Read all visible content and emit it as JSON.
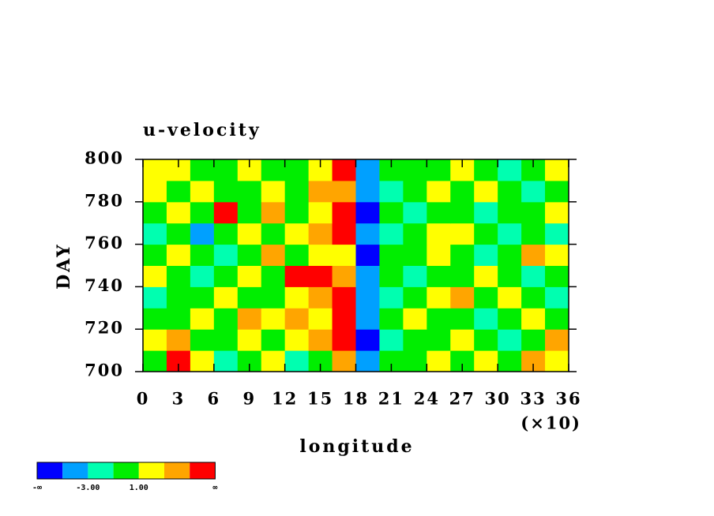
{
  "chart_data": {
    "type": "contour",
    "title": "u-velocity",
    "xlabel": "longitude",
    "ylabel": "DAY",
    "x_scale_label": "(×10)",
    "xlim": [
      0,
      36
    ],
    "xticks": [
      0,
      3,
      6,
      9,
      12,
      15,
      18,
      21,
      24,
      27,
      30,
      33,
      36
    ],
    "ylim": [
      700,
      800
    ],
    "yticks": [
      700,
      720,
      740,
      760,
      780,
      800
    ],
    "colorbar": {
      "colors": [
        "#0000ff",
        "#00a0ff",
        "#00ffb0",
        "#00ee00",
        "#ffff00",
        "#ffa500",
        "#ff0000"
      ],
      "labels": [
        "-∞",
        null,
        "-3.00",
        null,
        "1.00",
        null,
        null,
        "∞"
      ]
    },
    "z": [
      [
        3,
        6,
        4,
        2,
        3,
        4,
        2,
        3,
        5,
        1,
        3,
        3,
        4,
        3,
        4,
        3,
        5,
        4
      ],
      [
        4,
        5,
        3,
        3,
        4,
        3,
        4,
        5,
        6,
        0,
        2,
        3,
        3,
        4,
        3,
        2,
        3,
        5
      ],
      [
        3,
        3,
        4,
        3,
        5,
        4,
        5,
        4,
        6,
        1,
        3,
        4,
        3,
        3,
        2,
        3,
        4,
        3
      ],
      [
        2,
        3,
        3,
        4,
        3,
        3,
        4,
        5,
        6,
        1,
        2,
        3,
        4,
        5,
        3,
        4,
        3,
        2
      ],
      [
        4,
        3,
        2,
        3,
        4,
        3,
        6,
        6,
        5,
        1,
        3,
        2,
        3,
        3,
        4,
        3,
        2,
        3
      ],
      [
        3,
        4,
        3,
        2,
        3,
        5,
        3,
        4,
        4,
        0,
        3,
        3,
        4,
        3,
        2,
        3,
        5,
        4
      ],
      [
        2,
        3,
        1,
        3,
        4,
        3,
        4,
        5,
        6,
        1,
        2,
        3,
        4,
        4,
        3,
        2,
        3,
        2
      ],
      [
        3,
        4,
        3,
        6,
        3,
        5,
        3,
        4,
        6,
        0,
        3,
        2,
        3,
        3,
        2,
        3,
        3,
        4
      ],
      [
        4,
        3,
        4,
        3,
        3,
        4,
        3,
        5,
        5,
        1,
        2,
        3,
        4,
        3,
        4,
        3,
        2,
        3
      ],
      [
        4,
        4,
        3,
        3,
        4,
        3,
        3,
        4,
        6,
        1,
        3,
        3,
        3,
        4,
        3,
        2,
        3,
        4
      ]
    ]
  }
}
